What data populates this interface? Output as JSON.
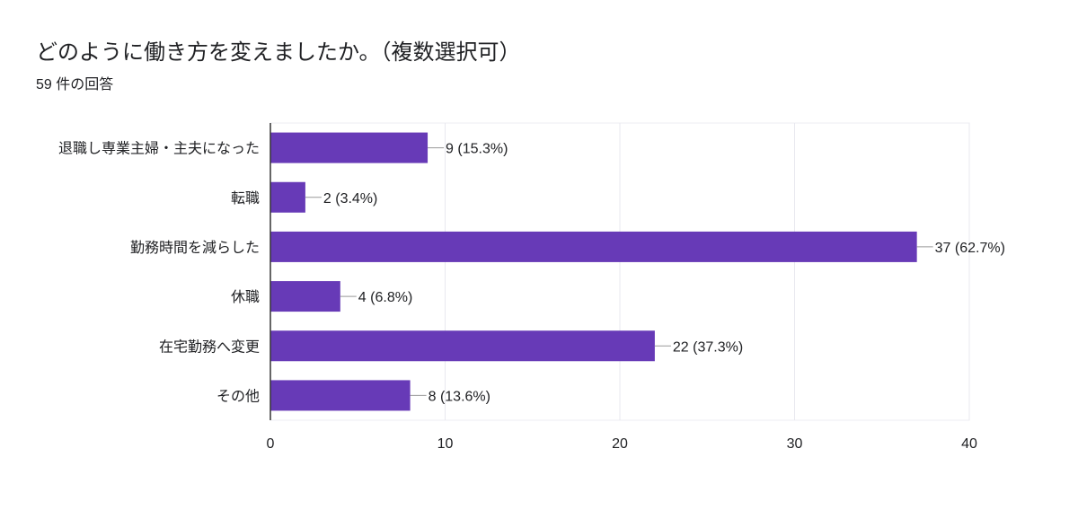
{
  "header": {
    "title": "どのように働き方を変えましたか。（複数選択可）",
    "response_count": "59 件の回答"
  },
  "chart_data": {
    "type": "bar",
    "orientation": "horizontal",
    "categories": [
      "退職し専業主婦・主夫になった",
      "転職",
      "勤務時間を減らした",
      "休職",
      "在宅勤務へ変更",
      "その他"
    ],
    "values": [
      9,
      2,
      37,
      4,
      22,
      8
    ],
    "data_labels": [
      "9 (15.3%)",
      "2 (3.4%)",
      "37 (62.7%)",
      "4 (6.8%)",
      "22 (37.3%)",
      "8 (13.6%)"
    ],
    "xlim": [
      0,
      40
    ],
    "x_ticks": [
      "0",
      "10",
      "20",
      "30",
      "40"
    ],
    "grid": true,
    "bar_color": "#673ab7"
  }
}
